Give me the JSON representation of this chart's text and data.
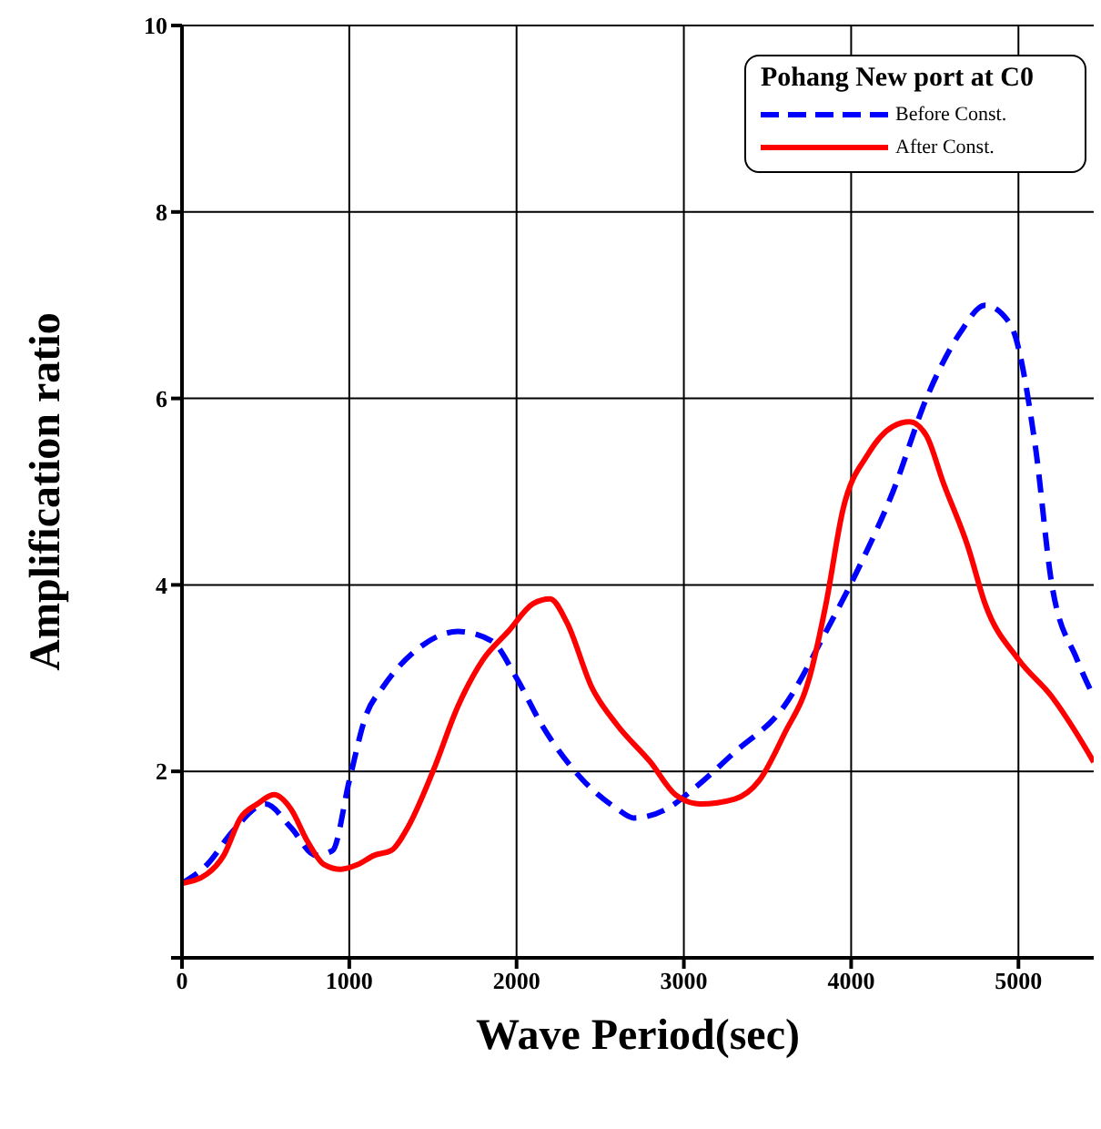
{
  "chart_data": {
    "type": "line",
    "xlabel": "Wave Period(sec)",
    "ylabel": "Amplification ratio",
    "legend_title": "Pohang New port at C0",
    "xlim": [
      0,
      5450
    ],
    "xticks": [
      0,
      1000,
      2000,
      3000,
      4000,
      5000
    ],
    "ylim": [
      0,
      10
    ],
    "yticks": [
      {
        "value": 0,
        "label": null
      },
      2,
      4,
      6,
      8,
      10
    ],
    "grid": true,
    "legend": "top right",
    "marker": "none",
    "series": [
      {
        "name": "Before Const.",
        "color": "#0000ff",
        "line_style": "dashed",
        "x": [
          0,
          150,
          300,
          500,
          650,
          800,
          900,
          1000,
          1100,
          1200,
          1400,
          1650,
          1850,
          2000,
          2150,
          2400,
          2600,
          2700,
          2900,
          3050,
          3300,
          3600,
          3850,
          4050,
          4250,
          4450,
          4650,
          4800,
          4950,
          5100,
          5200,
          5350,
          5450
        ],
        "values": [
          0.8,
          1.0,
          1.35,
          1.65,
          1.4,
          1.1,
          1.15,
          1.9,
          2.6,
          2.9,
          3.3,
          3.5,
          3.4,
          3.0,
          2.5,
          1.9,
          1.6,
          1.5,
          1.6,
          1.8,
          2.2,
          2.7,
          3.5,
          4.2,
          5.0,
          6.0,
          6.7,
          7.0,
          6.8,
          5.5,
          4.0,
          3.2,
          2.8
        ]
      },
      {
        "name": "After Const.",
        "color": "#ff0000",
        "line_style": "solid",
        "x": [
          0,
          150,
          250,
          350,
          450,
          550,
          650,
          750,
          850,
          950,
          1050,
          1150,
          1250,
          1350,
          1500,
          1650,
          1800,
          1950,
          2100,
          2200,
          2300,
          2450,
          2600,
          2800,
          2950,
          3100,
          3300,
          3450,
          3600,
          3750,
          3850,
          3950,
          4100,
          4250,
          4350,
          4450,
          4550,
          4700,
          4800,
          5000,
          5200,
          5350,
          5450
        ],
        "values": [
          0.8,
          0.9,
          1.1,
          1.5,
          1.65,
          1.75,
          1.6,
          1.25,
          1.0,
          0.95,
          1.0,
          1.1,
          1.15,
          1.4,
          2.0,
          2.7,
          3.2,
          3.5,
          3.8,
          3.85,
          3.6,
          2.9,
          2.5,
          2.1,
          1.75,
          1.65,
          1.7,
          1.9,
          2.4,
          3.0,
          3.8,
          4.8,
          5.4,
          5.7,
          5.75,
          5.6,
          5.1,
          4.4,
          3.8,
          3.2,
          2.8,
          2.4,
          2.1
        ]
      }
    ]
  }
}
